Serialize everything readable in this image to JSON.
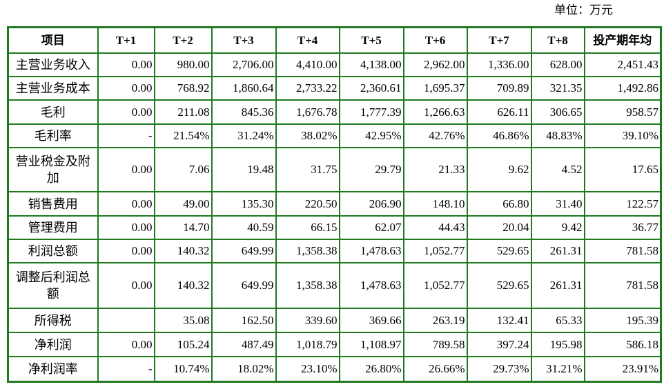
{
  "header": {
    "unit": "单位：万元"
  },
  "table": {
    "columns": [
      "项目",
      "T+1",
      "T+2",
      "T+3",
      "T+4",
      "T+5",
      "T+6",
      "T+7",
      "T+8",
      "投产期年均"
    ],
    "rows": [
      [
        "主营业务收入",
        "0.00",
        "980.00",
        "2,706.00",
        "4,410.00",
        "4,138.00",
        "2,962.00",
        "1,336.00",
        "628.00",
        "2,451.43"
      ],
      [
        "主营业务成本",
        "0.00",
        "768.92",
        "1,860.64",
        "2,733.22",
        "2,360.61",
        "1,695.37",
        "709.89",
        "321.35",
        "1,492.86"
      ],
      [
        "毛利",
        "0.00",
        "211.08",
        "845.36",
        "1,676.78",
        "1,777.39",
        "1,266.63",
        "626.11",
        "306.65",
        "958.57"
      ],
      [
        "毛利率",
        "-",
        "21.54%",
        "31.24%",
        "38.02%",
        "42.95%",
        "42.76%",
        "46.86%",
        "48.83%",
        "39.10%"
      ],
      [
        "营业税金及附加",
        "0.00",
        "7.06",
        "19.48",
        "31.75",
        "29.79",
        "21.33",
        "9.62",
        "4.52",
        "17.65"
      ],
      [
        "销售费用",
        "0.00",
        "49.00",
        "135.30",
        "220.50",
        "206.90",
        "148.10",
        "66.80",
        "31.40",
        "122.57"
      ],
      [
        "管理费用",
        "0.00",
        "14.70",
        "40.59",
        "66.15",
        "62.07",
        "44.43",
        "20.04",
        "9.42",
        "36.77"
      ],
      [
        "利润总额",
        "0.00",
        "140.32",
        "649.99",
        "1,358.38",
        "1,478.63",
        "1,052.77",
        "529.65",
        "261.31",
        "781.58"
      ],
      [
        "调整后利润总额",
        "0.00",
        "140.32",
        "649.99",
        "1,358.38",
        "1,478.63",
        "1,052.77",
        "529.65",
        "261.31",
        "781.58"
      ],
      [
        "所得税",
        null,
        "35.08",
        "162.50",
        "339.60",
        "369.66",
        "263.19",
        "132.41",
        "65.33",
        "195.39"
      ],
      [
        "净利润",
        "0.00",
        "105.24",
        "487.49",
        "1,018.79",
        "1,108.97",
        "789.58",
        "397.24",
        "195.98",
        "586.18"
      ],
      [
        "净利润率",
        "-",
        "10.74%",
        "18.02%",
        "23.10%",
        "26.80%",
        "26.66%",
        "29.73%",
        "31.21%",
        "23.91%"
      ]
    ]
  }
}
